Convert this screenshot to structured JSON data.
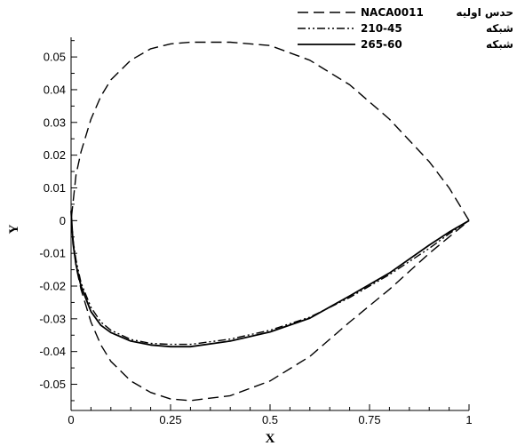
{
  "chart_data": {
    "type": "line",
    "xlabel": "X",
    "ylabel": "Y",
    "xlim": [
      0,
      1
    ],
    "ylim": [
      -0.058,
      0.056
    ],
    "xticks": [
      "0",
      "0.25",
      "0.5",
      "0.75",
      "1"
    ],
    "yticks": [
      "0.05",
      "0.04",
      "0.03",
      "0.02",
      "0.01",
      "0",
      "-0.01",
      "-0.02",
      "-0.03",
      "-0.04",
      "-0.05"
    ],
    "grid": false,
    "legend_position": "top-right",
    "series": [
      {
        "name": "حدس اولیه NACA0011",
        "style": "dashed",
        "x": [
          1,
          0.95,
          0.9,
          0.8,
          0.7,
          0.6,
          0.5,
          0.4,
          0.3,
          0.25,
          0.2,
          0.15,
          0.1,
          0.075,
          0.05,
          0.025,
          0.0125,
          0,
          0.0125,
          0.025,
          0.05,
          0.075,
          0.1,
          0.15,
          0.2,
          0.25,
          0.3,
          0.4,
          0.5,
          0.6,
          0.7,
          0.8,
          0.9,
          0.95,
          1
        ],
        "y": [
          0,
          0.01,
          0.018,
          0.031,
          0.0415,
          0.049,
          0.0535,
          0.0545,
          0.0545,
          0.054,
          0.0525,
          0.049,
          0.043,
          0.038,
          0.031,
          0.021,
          0.014,
          0,
          -0.014,
          -0.021,
          -0.031,
          -0.038,
          -0.043,
          -0.049,
          -0.0525,
          -0.0545,
          -0.055,
          -0.0535,
          -0.049,
          -0.0415,
          -0.031,
          -0.021,
          -0.01,
          -0.005,
          0
        ]
      },
      {
        "name": "شبکه 210-45",
        "style": "dash-dot",
        "x": [
          1,
          0.95,
          0.9,
          0.8,
          0.7,
          0.6,
          0.5,
          0.4,
          0.3,
          0.25,
          0.2,
          0.15,
          0.1,
          0.075,
          0.05,
          0.025,
          0.0125,
          0.005,
          0
        ],
        "y": [
          0,
          -0.004,
          -0.0085,
          -0.0165,
          -0.0235,
          -0.0295,
          -0.0335,
          -0.0362,
          -0.0378,
          -0.0378,
          -0.0375,
          -0.0363,
          -0.0335,
          -0.031,
          -0.0265,
          -0.019,
          -0.012,
          -0.006,
          0.002
        ]
      },
      {
        "name": "شبکه 265-60",
        "style": "solid",
        "x": [
          1,
          0.95,
          0.9,
          0.8,
          0.7,
          0.6,
          0.5,
          0.4,
          0.3,
          0.25,
          0.2,
          0.15,
          0.1,
          0.075,
          0.05,
          0.025,
          0.0125,
          0.005,
          0
        ],
        "y": [
          0,
          -0.0035,
          -0.0075,
          -0.016,
          -0.023,
          -0.0298,
          -0.034,
          -0.0368,
          -0.0385,
          -0.0385,
          -0.038,
          -0.0368,
          -0.0342,
          -0.032,
          -0.0278,
          -0.02,
          -0.0135,
          -0.007,
          0.003
        ]
      }
    ],
    "legend": [
      {
        "prefix": "حدس اولیه",
        "code": "NACA0011"
      },
      {
        "prefix": "شبکه",
        "code": "210-45"
      },
      {
        "prefix": "شبکه",
        "code": "265-60"
      }
    ]
  }
}
